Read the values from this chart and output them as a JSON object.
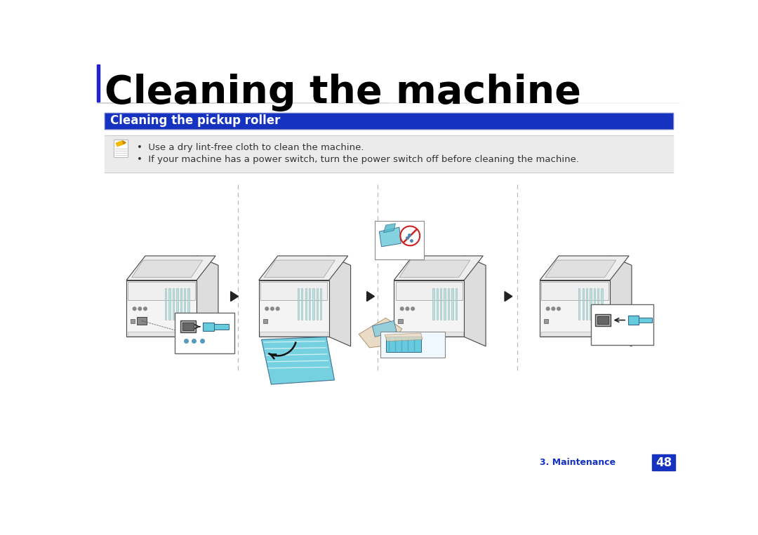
{
  "title": "Cleaning the machine",
  "title_fontsize": 40,
  "title_color": "#000000",
  "title_bar_color": "#2222cc",
  "section_title": "Cleaning the pickup roller",
  "section_bg_color": "#1533c0",
  "section_title_color": "#ffffff",
  "section_title_fontsize": 12,
  "note_bullet1": "Use a dry lint-free cloth to clean the machine.",
  "note_bullet2": "If your machine has a power switch, turn the power switch off before cleaning the machine.",
  "note_bg_color": "#ebebeb",
  "note_text_fontsize": 9.5,
  "footer_text": "3. Maintenance",
  "footer_num": "48",
  "footer_num_bg": "#1533c0",
  "footer_color": "#1533c0",
  "bg_color": "#ffffff",
  "printer_body_color": "#f4f4f4",
  "printer_edge_color": "#444444",
  "printer_top_color": "#e8e8e8",
  "printer_side_color": "#dddddd",
  "printer_vent_color": "#aadddd",
  "printer_tray_color": "#66ccdd",
  "arrow_color": "#222222"
}
